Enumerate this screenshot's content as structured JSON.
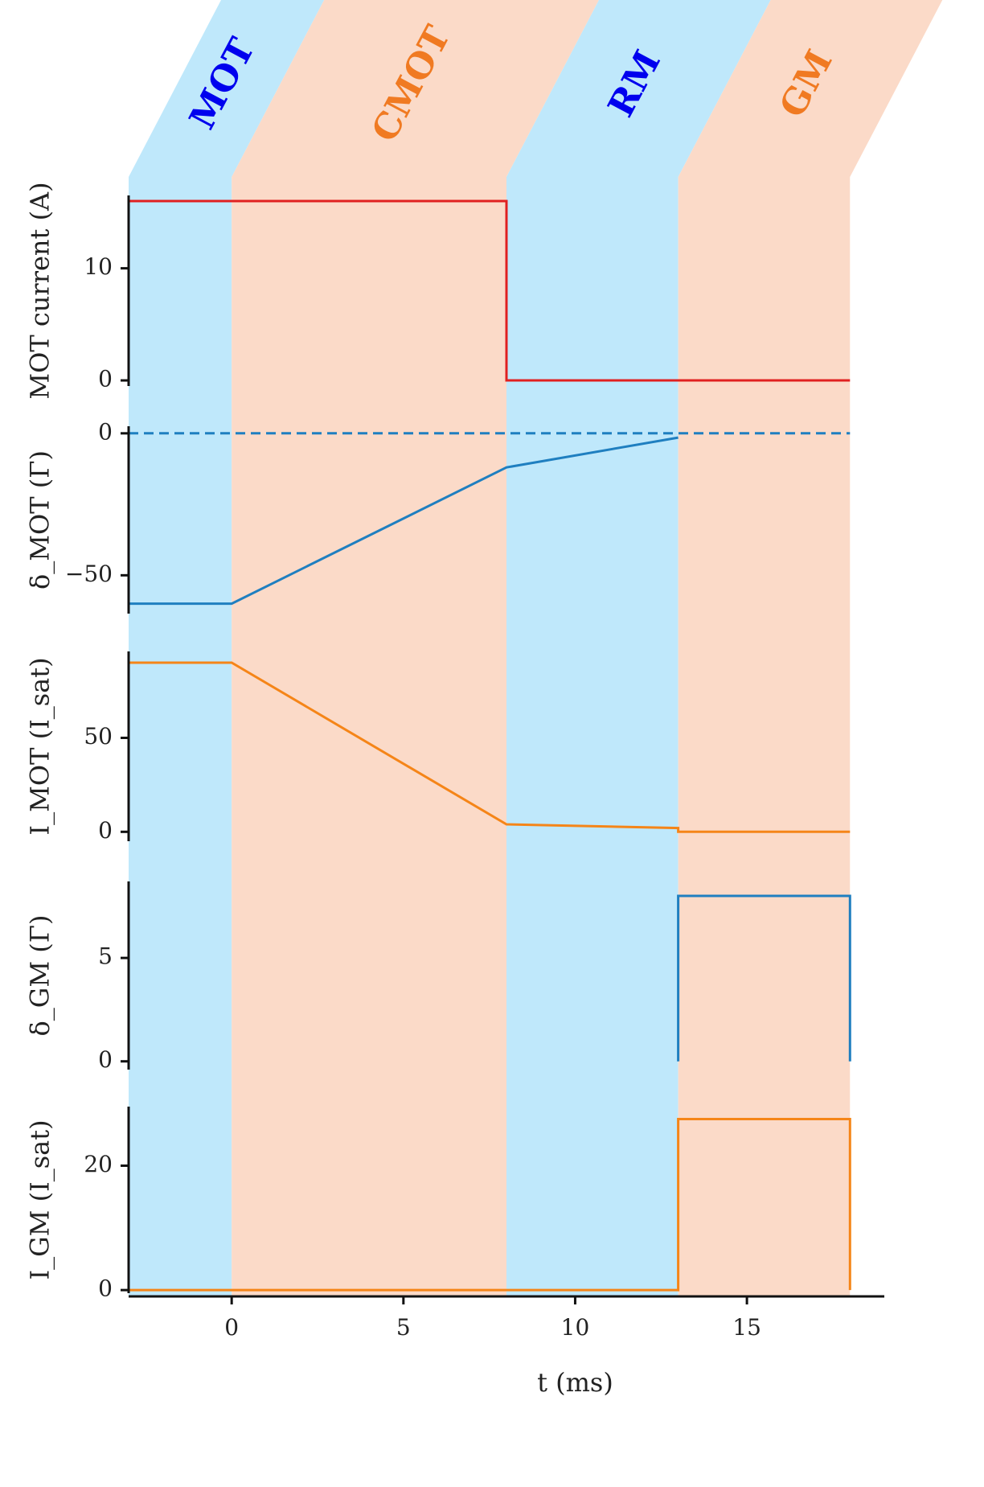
{
  "chart_data": {
    "type": "line",
    "xlabel": "t (ms)",
    "xlim": [
      -3,
      19
    ],
    "x_ticks": [
      0,
      5,
      10,
      15
    ],
    "colors": {
      "phase_blue": "#bfe8fb",
      "phase_orange": "#fbdac8",
      "label_blue": "#0000ee",
      "label_orange": "#f07a22",
      "current": "#e02020",
      "detuning": "#1f7fc0",
      "intensity": "#f58518"
    },
    "phases": [
      {
        "label": "MOT",
        "start": -3,
        "end": 0,
        "color": "phase_blue",
        "label_color": "label_blue"
      },
      {
        "label": "CMOT",
        "start": 0,
        "end": 8,
        "color": "phase_orange",
        "label_color": "label_orange"
      },
      {
        "label": "RM",
        "start": 8,
        "end": 13,
        "color": "phase_blue",
        "label_color": "label_blue"
      },
      {
        "label": "GM",
        "start": 13,
        "end": 18,
        "color": "phase_orange",
        "label_color": "label_orange"
      }
    ],
    "panels": [
      {
        "ylabel": "MOT current (A)",
        "ylim": [
          -0.5,
          16.5
        ],
        "y_ticks": [
          {
            "v": 0,
            "t": "0"
          },
          {
            "v": 10,
            "t": "10"
          }
        ],
        "series": [
          {
            "color": "current",
            "dashed": false,
            "x": [
              -3,
              8,
              8,
              18
            ],
            "y": [
              16,
              16,
              0,
              0
            ]
          }
        ]
      },
      {
        "ylabel": "δ_MOT (Γ)",
        "ylim": [
          -63.5,
          2.5
        ],
        "y_ticks": [
          {
            "v": 0,
            "t": "0"
          },
          {
            "v": -50,
            "t": "−50"
          }
        ],
        "series": [
          {
            "color": "detuning",
            "dashed": false,
            "x": [
              -3,
              0,
              8,
              13
            ],
            "y": [
              -60,
              -60,
              -12,
              -1.5
            ]
          },
          {
            "color": "detuning",
            "dashed": true,
            "x": [
              -3,
              18
            ],
            "y": [
              0,
              0
            ]
          }
        ]
      },
      {
        "ylabel": "I_MOT (I_sat)",
        "ylim": [
          -5,
          96
        ],
        "y_ticks": [
          {
            "v": 0,
            "t": "0"
          },
          {
            "v": 50,
            "t": "50"
          }
        ],
        "series": [
          {
            "color": "intensity",
            "dashed": false,
            "x": [
              -3,
              0,
              8,
              13,
              13,
              18
            ],
            "y": [
              90,
              90,
              4,
              2,
              0,
              0
            ]
          }
        ]
      },
      {
        "ylabel": "δ_GM (Γ)",
        "ylim": [
          -0.4,
          8.7
        ],
        "y_ticks": [
          {
            "v": 0,
            "t": "0"
          },
          {
            "v": 5,
            "t": "5"
          }
        ],
        "series": [
          {
            "color": "detuning",
            "dashed": false,
            "x": [
              13,
              13,
              18,
              18
            ],
            "y": [
              0,
              8,
              8,
              0
            ]
          }
        ]
      },
      {
        "ylabel": "I_GM (I_sat)",
        "ylim": [
          -0.5,
          29.5
        ],
        "y_ticks": [
          {
            "v": 0,
            "t": "0"
          },
          {
            "v": 20,
            "t": "20"
          }
        ],
        "series": [
          {
            "color": "intensity",
            "dashed": false,
            "x": [
              -3,
              13,
              13,
              18,
              18
            ],
            "y": [
              0,
              0,
              27.5,
              27.5,
              0
            ]
          }
        ]
      }
    ]
  }
}
